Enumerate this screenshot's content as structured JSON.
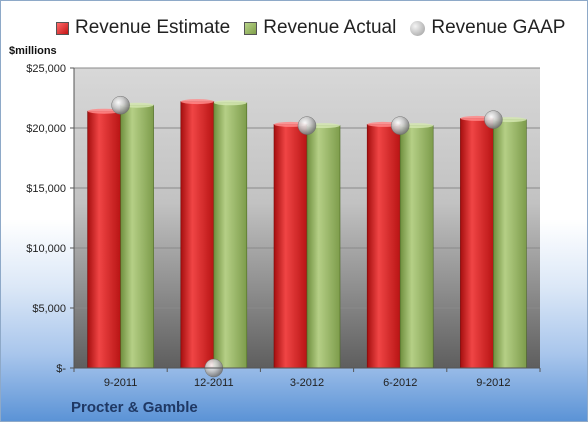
{
  "legend": {
    "estimate": "Revenue Estimate",
    "actual": "Revenue Actual",
    "gaap": "Revenue GAAP"
  },
  "unit_label": "$millions",
  "company": "Procter & Gamble",
  "colors": {
    "estimate": "#d42020",
    "actual": "#8fae5a",
    "gaap": "#b8b8b8"
  },
  "chart_data": {
    "type": "bar",
    "categories": [
      "9-2011",
      "12-2011",
      "3-2012",
      "6-2012",
      "9-2012"
    ],
    "series": [
      {
        "name": "Revenue Estimate",
        "values": [
          21400,
          22200,
          20300,
          20300,
          20800
        ]
      },
      {
        "name": "Revenue Actual",
        "values": [
          21900,
          22100,
          20200,
          20200,
          20700
        ]
      },
      {
        "name": "Revenue GAAP",
        "values": [
          21900,
          0,
          20200,
          20200,
          20700
        ]
      }
    ],
    "ylim": [
      0,
      25000
    ],
    "yticks": [
      0,
      5000,
      10000,
      15000,
      20000,
      25000
    ],
    "ytick_labels": [
      "$-",
      "$5,000",
      "$10,000",
      "$15,000",
      "$20,000",
      "$25,000"
    ],
    "grid": true
  }
}
